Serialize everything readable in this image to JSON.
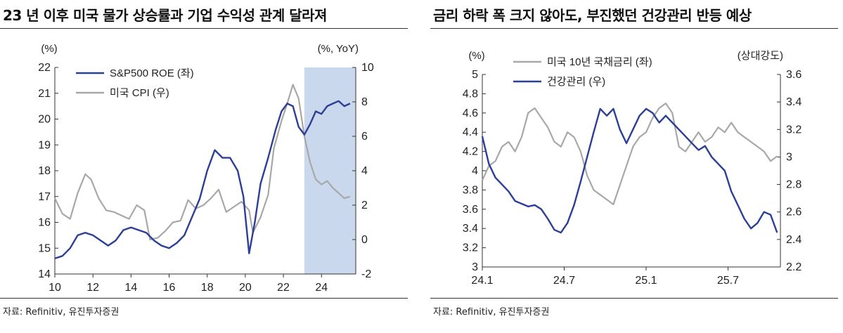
{
  "left": {
    "title": "23 년 이후 미국 물가 상승률과 기업 수익성 관계 달라져",
    "source": "자료: Refinitiv, 유진투자증권",
    "y_left_unit": "(%)",
    "y_right_unit": "(%, YoY)"
  },
  "right": {
    "title": "금리 하락 폭 크지 않아도, 부진했던 건강관리 반등 예상",
    "source": "자료: Refinitiv, 유진투자증권",
    "y_left_unit": "(%)",
    "y_right_unit": "(상대강도)"
  },
  "colors": {
    "navy": "#2B3F96",
    "gray": "#A8A8A8",
    "shade": "#C9D8EC"
  },
  "chart_data": [
    {
      "type": "line",
      "x_ticks": [
        "10",
        "12",
        "14",
        "16",
        "18",
        "20",
        "22",
        "24"
      ],
      "x_tick_values": [
        2010,
        2012,
        2014,
        2016,
        2018,
        2020,
        2022,
        2024
      ],
      "xlim": [
        2010,
        2025.8
      ],
      "ylim_left": [
        14,
        22
      ],
      "y_left_ticks": [
        14,
        15,
        16,
        17,
        18,
        19,
        20,
        21,
        22
      ],
      "ylim_right": [
        -2,
        10
      ],
      "y_right_ticks": [
        -2,
        0,
        2,
        4,
        6,
        8,
        10
      ],
      "shaded_x_range": [
        2023.1,
        2025.8
      ],
      "legend_position": "top-left",
      "series": [
        {
          "name": "S&P500 ROE (좌)",
          "axis": "left",
          "color": "navy",
          "x": [
            2010.0,
            2010.4,
            2010.8,
            2011.2,
            2011.6,
            2012.0,
            2012.4,
            2012.8,
            2013.2,
            2013.6,
            2014.0,
            2014.4,
            2014.8,
            2015.2,
            2015.6,
            2016.0,
            2016.4,
            2016.8,
            2017.2,
            2017.6,
            2018.0,
            2018.4,
            2018.8,
            2019.2,
            2019.6,
            2019.9,
            2020.2,
            2020.5,
            2020.8,
            2021.2,
            2021.6,
            2021.9,
            2022.2,
            2022.5,
            2022.8,
            2023.1,
            2023.4,
            2023.7,
            2024.0,
            2024.3,
            2024.6,
            2024.9,
            2025.2,
            2025.5
          ],
          "values": [
            14.6,
            14.7,
            15.0,
            15.5,
            15.6,
            15.5,
            15.3,
            15.1,
            15.3,
            15.7,
            15.8,
            15.7,
            15.6,
            15.3,
            15.1,
            15.0,
            15.2,
            15.5,
            16.2,
            16.9,
            18.0,
            18.8,
            18.5,
            18.5,
            18.0,
            17.0,
            14.8,
            16.0,
            17.5,
            18.5,
            19.6,
            20.3,
            20.6,
            20.5,
            19.7,
            19.4,
            19.8,
            20.3,
            20.2,
            20.5,
            20.6,
            20.7,
            20.5,
            20.6
          ]
        },
        {
          "name": "미국 CPI (우)",
          "axis": "right",
          "color": "gray",
          "x": [
            2010.0,
            2010.4,
            2010.8,
            2011.2,
            2011.6,
            2011.9,
            2012.3,
            2012.7,
            2013.1,
            2013.5,
            2013.9,
            2014.3,
            2014.7,
            2015.0,
            2015.4,
            2015.8,
            2016.2,
            2016.6,
            2017.0,
            2017.4,
            2017.8,
            2018.2,
            2018.6,
            2019.0,
            2019.4,
            2019.8,
            2020.2,
            2020.4,
            2020.8,
            2021.2,
            2021.5,
            2021.9,
            2022.2,
            2022.5,
            2022.8,
            2023.1,
            2023.4,
            2023.7,
            2024.0,
            2024.3,
            2024.6,
            2024.9,
            2025.2,
            2025.5
          ],
          "values": [
            2.4,
            1.5,
            1.2,
            2.7,
            3.8,
            3.5,
            2.4,
            1.7,
            1.6,
            1.4,
            1.2,
            2.0,
            1.7,
            0.0,
            0.1,
            0.5,
            1.0,
            1.1,
            2.3,
            1.8,
            2.0,
            2.4,
            2.9,
            1.6,
            1.9,
            2.2,
            1.7,
            0.4,
            1.3,
            2.6,
            5.3,
            6.9,
            7.9,
            9.0,
            8.2,
            6.0,
            4.5,
            3.5,
            3.2,
            3.4,
            3.0,
            2.7,
            2.4,
            2.5
          ]
        }
      ]
    },
    {
      "type": "line",
      "x_ticks": [
        "24.1",
        "24.7",
        "25.1",
        "25.7"
      ],
      "x_tick_values": [
        2024.0,
        2024.5,
        2025.0,
        2025.5
      ],
      "xlim": [
        2024.0,
        2025.82
      ],
      "ylim_left": [
        3.0,
        5.0
      ],
      "y_left_ticks": [
        3.0,
        3.2,
        3.4,
        3.6,
        3.8,
        4.0,
        4.2,
        4.4,
        4.6,
        4.8,
        5.0
      ],
      "ylim_right": [
        2.2,
        3.6
      ],
      "y_right_ticks": [
        2.2,
        2.4,
        2.6,
        2.8,
        3.0,
        3.2,
        3.4,
        3.6
      ],
      "legend_position": "top-left",
      "series": [
        {
          "name": "미국 10년 국채금리 (좌)",
          "axis": "left",
          "color": "gray",
          "x": [
            2024.0,
            2024.04,
            2024.08,
            2024.12,
            2024.16,
            2024.2,
            2024.24,
            2024.28,
            2024.32,
            2024.36,
            2024.4,
            2024.44,
            2024.48,
            2024.52,
            2024.56,
            2024.6,
            2024.64,
            2024.68,
            2024.72,
            2024.76,
            2024.8,
            2024.84,
            2024.88,
            2024.92,
            2024.96,
            2025.0,
            2025.04,
            2025.08,
            2025.12,
            2025.16,
            2025.2,
            2025.24,
            2025.28,
            2025.32,
            2025.36,
            2025.4,
            2025.44,
            2025.48,
            2025.52,
            2025.56,
            2025.6,
            2025.64,
            2025.68,
            2025.72,
            2025.76,
            2025.8
          ],
          "values": [
            3.9,
            4.05,
            4.1,
            4.25,
            4.3,
            4.2,
            4.35,
            4.6,
            4.65,
            4.55,
            4.45,
            4.3,
            4.25,
            4.4,
            4.35,
            4.2,
            3.95,
            3.8,
            3.75,
            3.7,
            3.65,
            3.85,
            4.05,
            4.25,
            4.35,
            4.4,
            4.55,
            4.65,
            4.7,
            4.6,
            4.25,
            4.2,
            4.3,
            4.4,
            4.3,
            4.35,
            4.45,
            4.4,
            4.5,
            4.4,
            4.35,
            4.3,
            4.25,
            4.2,
            4.1,
            4.15
          ]
        },
        {
          "name": "건강관리 (우)",
          "axis": "right",
          "color": "navy",
          "x": [
            2024.0,
            2024.04,
            2024.08,
            2024.12,
            2024.16,
            2024.2,
            2024.24,
            2024.28,
            2024.32,
            2024.36,
            2024.4,
            2024.44,
            2024.48,
            2024.52,
            2024.56,
            2024.6,
            2024.64,
            2024.68,
            2024.72,
            2024.76,
            2024.8,
            2024.84,
            2024.88,
            2024.92,
            2024.96,
            2025.0,
            2025.04,
            2025.08,
            2025.12,
            2025.16,
            2025.2,
            2025.24,
            2025.28,
            2025.32,
            2025.36,
            2025.4,
            2025.44,
            2025.48,
            2025.52,
            2025.56,
            2025.6,
            2025.64,
            2025.68,
            2025.72,
            2025.76,
            2025.8
          ],
          "values": [
            3.15,
            2.95,
            2.85,
            2.8,
            2.75,
            2.68,
            2.66,
            2.64,
            2.65,
            2.62,
            2.55,
            2.47,
            2.45,
            2.52,
            2.65,
            2.82,
            3.0,
            3.18,
            3.35,
            3.3,
            3.35,
            3.2,
            3.1,
            3.2,
            3.3,
            3.35,
            3.32,
            3.25,
            3.3,
            3.25,
            3.2,
            3.15,
            3.1,
            3.05,
            3.08,
            3.0,
            2.95,
            2.9,
            2.75,
            2.65,
            2.55,
            2.48,
            2.52,
            2.6,
            2.58,
            2.45
          ]
        }
      ]
    }
  ]
}
